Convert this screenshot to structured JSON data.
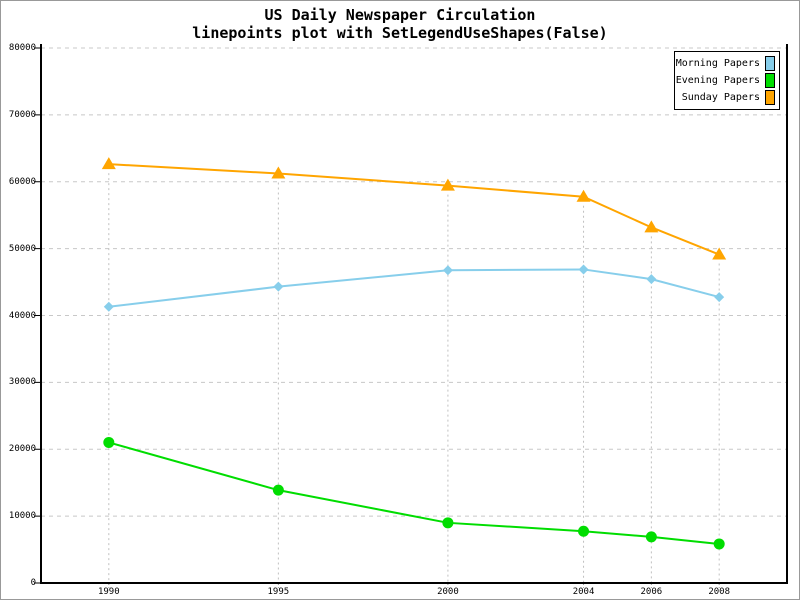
{
  "title": "US Daily Newspaper Circulation",
  "subtitle": "linepoints plot with SetLegendUseShapes(False)",
  "chart_data": {
    "type": "line",
    "x": [
      1990,
      1995,
      2000,
      2004,
      2006,
      2008
    ],
    "x_tick_labels": [
      "1990",
      "1995",
      "2000",
      "2004",
      "2006",
      "2008"
    ],
    "y_ticks": [
      0,
      10000,
      20000,
      30000,
      40000,
      50000,
      60000,
      70000,
      80000
    ],
    "y_tick_labels": [
      "0",
      "10000",
      "20000",
      "30000",
      "40000",
      "50000",
      "60000",
      "70000",
      "80000"
    ],
    "xlim": [
      1988,
      2010
    ],
    "ylim": [
      0,
      80000
    ],
    "grid": true,
    "legend_position": "top-right",
    "series": [
      {
        "name": "Morning Papers",
        "marker": "diamond",
        "color": "#87CEEB",
        "values": [
          41311,
          44310,
          46772,
          46887,
          45441,
          42757
        ]
      },
      {
        "name": "Evening Papers",
        "marker": "circle",
        "color": "#00DD00",
        "values": [
          21017,
          13883,
          9000,
          7738,
          6900,
          5840
        ]
      },
      {
        "name": "Sunday Papers",
        "marker": "triangle",
        "color": "#FFA500",
        "values": [
          62635,
          61229,
          59421,
          57754,
          53179,
          49115
        ]
      }
    ],
    "colors": {
      "grid": "#c8c8c8",
      "vgrid": "#c0c0c0",
      "axis": "#000000",
      "background": "#ffffff",
      "outer_border": "#999999"
    }
  }
}
